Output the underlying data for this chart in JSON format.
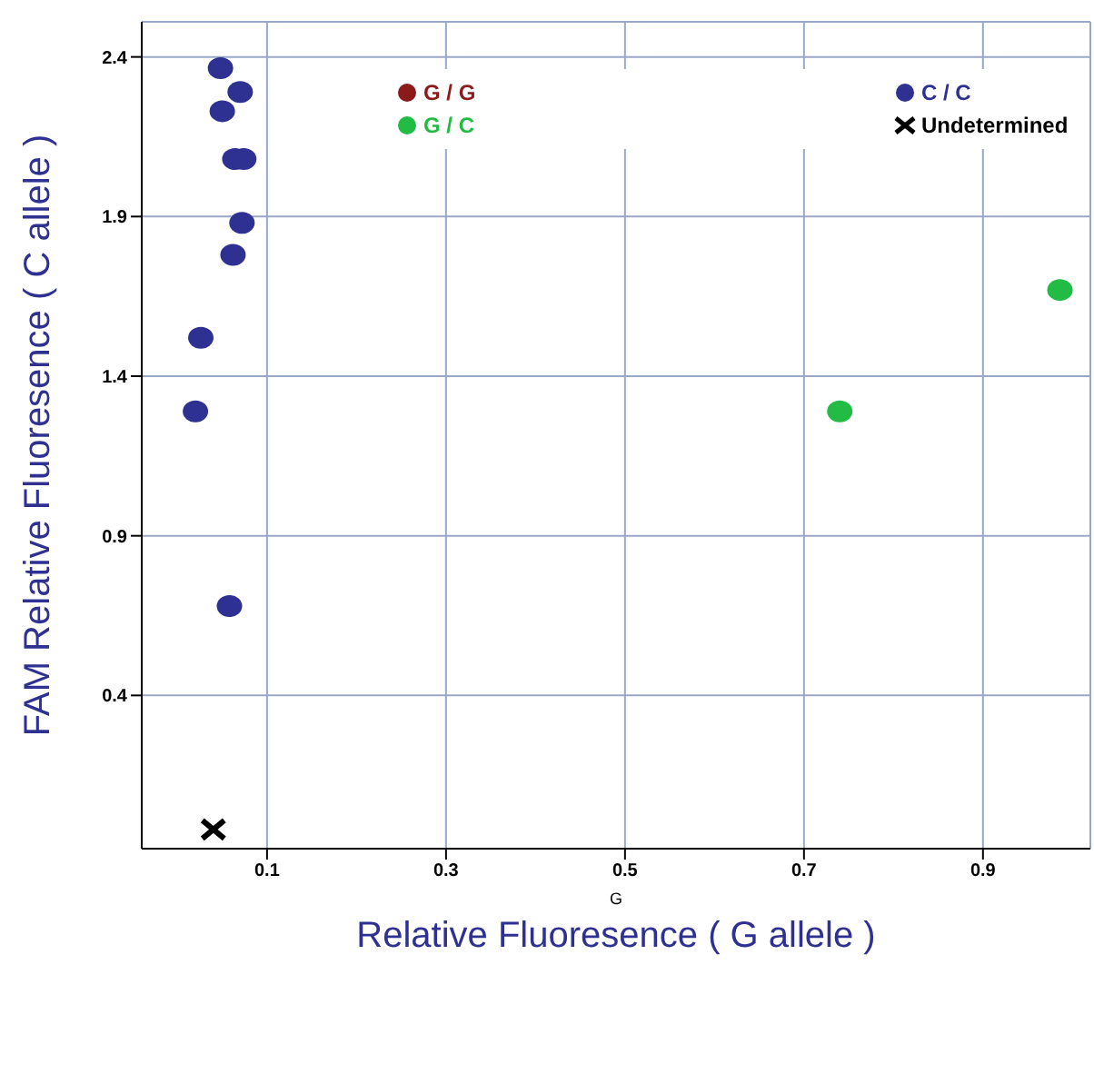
{
  "chart_data": {
    "type": "scatter",
    "xlabel": "Relative Fluoresence ( G allele )",
    "ylabel": "FAM Relative Fluoresence ( C allele )",
    "annotations": [
      "G"
    ],
    "xlim": [
      -0.04,
      1.02
    ],
    "xticks": [
      0.1,
      0.3,
      0.5,
      0.7,
      0.9
    ],
    "ylim": [
      -0.08,
      2.51
    ],
    "yticks": [
      0.4,
      0.9,
      1.4,
      1.9,
      2.4
    ],
    "grid": true,
    "legend": "top right",
    "marker": "circle",
    "series": [
      {
        "name": "G / G",
        "color": "#8b1a1a"
      },
      {
        "name": "G / C",
        "color": "#22bb44",
        "x": [
          0.74,
          0.986
        ],
        "values": [
          1.29,
          1.67
        ]
      },
      {
        "name": "C / C",
        "color": "#2e3192",
        "x": [
          0.048,
          0.07,
          0.05,
          0.064,
          0.074,
          0.072,
          0.062,
          0.026,
          0.02,
          0.058
        ],
        "values": [
          2.365,
          2.29,
          2.23,
          2.08,
          2.08,
          1.88,
          1.78,
          1.52,
          1.29,
          0.68
        ]
      },
      {
        "name": "Undetermined",
        "color": "#000000",
        "marker": "cross",
        "x": [
          0.04
        ],
        "values": [
          -0.02
        ]
      }
    ]
  }
}
